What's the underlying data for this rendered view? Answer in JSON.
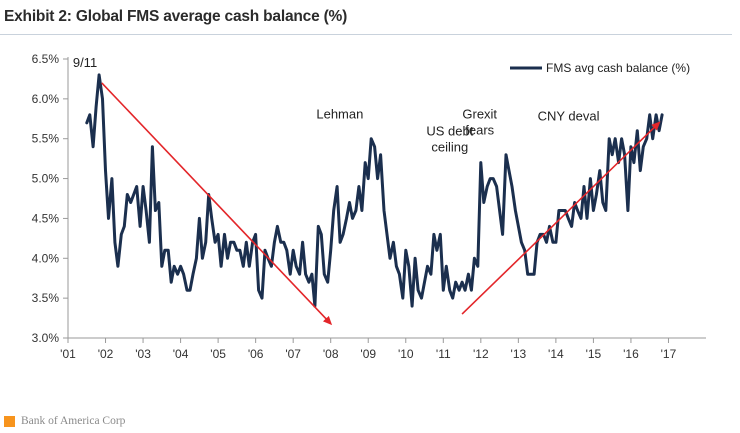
{
  "header": {
    "title": "Exhibit 2: Global FMS average cash balance (%)"
  },
  "footer": {
    "source": "Bank of America Corp"
  },
  "colors": {
    "series": "#1b2f4e",
    "arrow": "#e3262a",
    "axis": "#9a9a9a",
    "source_mark": "#f7941d"
  },
  "chart_data": {
    "type": "line",
    "title": "Global FMS average cash balance (%)",
    "xlabel": "",
    "ylabel": "",
    "xlim": [
      2001.0,
      2018.0
    ],
    "ylim": [
      3.0,
      6.5
    ],
    "grid": false,
    "legend_position": "top-right",
    "y_ticks": [
      {
        "value": 3.0,
        "label": "3.0%"
      },
      {
        "value": 3.5,
        "label": "3.5%"
      },
      {
        "value": 4.0,
        "label": "4.0%"
      },
      {
        "value": 4.5,
        "label": "4.5%"
      },
      {
        "value": 5.0,
        "label": "5.0%"
      },
      {
        "value": 5.5,
        "label": "5.5%"
      },
      {
        "value": 6.0,
        "label": "6.0%"
      },
      {
        "value": 6.5,
        "label": "6.5%"
      }
    ],
    "x_ticks": [
      {
        "value": 2001,
        "label": "'01"
      },
      {
        "value": 2002,
        "label": "'02"
      },
      {
        "value": 2003,
        "label": "'03"
      },
      {
        "value": 2004,
        "label": "'04"
      },
      {
        "value": 2005,
        "label": "'05"
      },
      {
        "value": 2006,
        "label": "'06"
      },
      {
        "value": 2007,
        "label": "'07"
      },
      {
        "value": 2008,
        "label": "'08"
      },
      {
        "value": 2009,
        "label": "'09"
      },
      {
        "value": 2010,
        "label": "'10"
      },
      {
        "value": 2011,
        "label": "'11"
      },
      {
        "value": 2012,
        "label": "'12"
      },
      {
        "value": 2013,
        "label": "'13"
      },
      {
        "value": 2014,
        "label": "'14"
      },
      {
        "value": 2015,
        "label": "'15"
      },
      {
        "value": 2016,
        "label": "'16"
      },
      {
        "value": 2017,
        "label": "'17"
      }
    ],
    "series": [
      {
        "name": "FMS avg cash balance (%)",
        "x": [
          2001.5,
          2001.58,
          2001.67,
          2001.75,
          2001.83,
          2001.92,
          2002.0,
          2002.08,
          2002.17,
          2002.25,
          2002.33,
          2002.42,
          2002.5,
          2002.58,
          2002.67,
          2002.75,
          2002.83,
          2002.92,
          2003.0,
          2003.08,
          2003.17,
          2003.25,
          2003.33,
          2003.42,
          2003.5,
          2003.58,
          2003.67,
          2003.75,
          2003.83,
          2003.92,
          2004.0,
          2004.08,
          2004.17,
          2004.25,
          2004.33,
          2004.42,
          2004.5,
          2004.58,
          2004.67,
          2004.75,
          2004.83,
          2004.92,
          2005.0,
          2005.08,
          2005.17,
          2005.25,
          2005.33,
          2005.42,
          2005.5,
          2005.58,
          2005.67,
          2005.75,
          2005.83,
          2005.92,
          2006.0,
          2006.08,
          2006.17,
          2006.25,
          2006.33,
          2006.42,
          2006.5,
          2006.58,
          2006.67,
          2006.75,
          2006.83,
          2006.92,
          2007.0,
          2007.08,
          2007.17,
          2007.25,
          2007.33,
          2007.42,
          2007.5,
          2007.58,
          2007.67,
          2007.75,
          2007.83,
          2007.92,
          2008.0,
          2008.08,
          2008.17,
          2008.25,
          2008.33,
          2008.42,
          2008.5,
          2008.58,
          2008.67,
          2008.75,
          2008.83,
          2008.92,
          2009.0,
          2009.08,
          2009.17,
          2009.25,
          2009.33,
          2009.42,
          2009.5,
          2009.58,
          2009.67,
          2009.75,
          2009.83,
          2009.92,
          2010.0,
          2010.08,
          2010.17,
          2010.25,
          2010.33,
          2010.42,
          2010.5,
          2010.58,
          2010.67,
          2010.75,
          2010.83,
          2010.92,
          2011.0,
          2011.08,
          2011.17,
          2011.25,
          2011.33,
          2011.42,
          2011.5,
          2011.58,
          2011.67,
          2011.75,
          2011.83,
          2011.92,
          2012.0,
          2012.08,
          2012.17,
          2012.25,
          2012.33,
          2012.42,
          2012.5,
          2012.58,
          2012.67,
          2012.75,
          2012.83,
          2012.92,
          2013.0,
          2013.08,
          2013.17,
          2013.25,
          2013.33,
          2013.42,
          2013.5,
          2013.58,
          2013.67,
          2013.75,
          2013.83,
          2013.92,
          2014.0,
          2014.08,
          2014.17,
          2014.25,
          2014.33,
          2014.42,
          2014.5,
          2014.58,
          2014.67,
          2014.75,
          2014.83,
          2014.92,
          2015.0,
          2015.08,
          2015.17,
          2015.25,
          2015.33,
          2015.42,
          2015.5,
          2015.58,
          2015.67,
          2015.75,
          2015.83,
          2015.92,
          2016.0,
          2016.08,
          2016.17,
          2016.25,
          2016.33,
          2016.42,
          2016.5,
          2016.58,
          2016.67,
          2016.75,
          2016.83
        ],
        "y": [
          5.7,
          5.8,
          5.4,
          5.9,
          6.3,
          6.0,
          5.1,
          4.5,
          5.0,
          4.2,
          3.9,
          4.3,
          4.4,
          4.8,
          4.7,
          4.8,
          4.9,
          4.4,
          4.9,
          4.6,
          4.2,
          5.4,
          4.6,
          4.7,
          3.9,
          4.1,
          4.1,
          3.7,
          3.9,
          3.8,
          3.9,
          3.8,
          3.6,
          3.6,
          3.8,
          4.0,
          4.5,
          4.0,
          4.2,
          4.8,
          4.5,
          4.2,
          4.3,
          3.9,
          4.3,
          4.0,
          4.2,
          4.2,
          4.1,
          4.1,
          3.9,
          4.2,
          3.9,
          4.2,
          4.3,
          3.6,
          3.5,
          4.1,
          4.0,
          3.9,
          4.2,
          4.4,
          4.2,
          4.2,
          4.1,
          3.8,
          4.1,
          3.9,
          3.8,
          4.2,
          3.8,
          3.7,
          3.8,
          3.4,
          4.4,
          4.3,
          3.8,
          3.7,
          4.1,
          4.6,
          4.9,
          4.2,
          4.3,
          4.5,
          4.7,
          4.5,
          4.6,
          4.9,
          4.6,
          5.2,
          5.0,
          5.5,
          5.4,
          5.0,
          5.3,
          4.6,
          4.3,
          4.0,
          4.2,
          3.9,
          3.8,
          3.5,
          4.1,
          3.9,
          3.4,
          4.0,
          3.6,
          3.5,
          3.7,
          3.9,
          3.8,
          4.3,
          4.1,
          4.3,
          3.6,
          3.9,
          3.6,
          3.5,
          3.7,
          3.6,
          3.7,
          3.6,
          3.8,
          3.6,
          4.0,
          3.9,
          5.2,
          4.7,
          4.9,
          5.0,
          5.0,
          4.9,
          4.6,
          4.3,
          5.3,
          5.1,
          4.9,
          4.6,
          4.4,
          4.2,
          4.1,
          3.8,
          3.8,
          3.8,
          4.2,
          4.3,
          4.3,
          4.2,
          4.4,
          4.2,
          4.2,
          4.6,
          4.6,
          4.6,
          4.5,
          4.4,
          4.7,
          4.6,
          4.5,
          4.9,
          4.5,
          5.0,
          4.6,
          4.8,
          5.1,
          4.7,
          4.6,
          5.5,
          5.3,
          5.5,
          5.2,
          5.5,
          5.3,
          4.6,
          5.4,
          5.2,
          5.6,
          5.1,
          5.4,
          5.5,
          5.8,
          5.5,
          5.8,
          5.6,
          5.8
        ]
      }
    ],
    "annotations": [
      {
        "text": "9/11",
        "x": 2001.72,
        "y": 6.3
      },
      {
        "text": "Lehman",
        "x": 2008.75,
        "y": 5.6
      },
      {
        "text": "US debt ceiling",
        "x": 2011.6,
        "y": 5.35
      },
      {
        "text": "Grexit fears",
        "x": 2012.45,
        "y": 5.45
      },
      {
        "text": "CNY deval",
        "x": 2015.35,
        "y": 5.6
      }
    ],
    "trend_arrows": [
      {
        "from": [
          2001.9,
          6.2
        ],
        "to": [
          2008.0,
          3.18
        ]
      },
      {
        "from": [
          2011.5,
          3.3
        ],
        "to": [
          2016.75,
          5.7
        ]
      }
    ]
  }
}
